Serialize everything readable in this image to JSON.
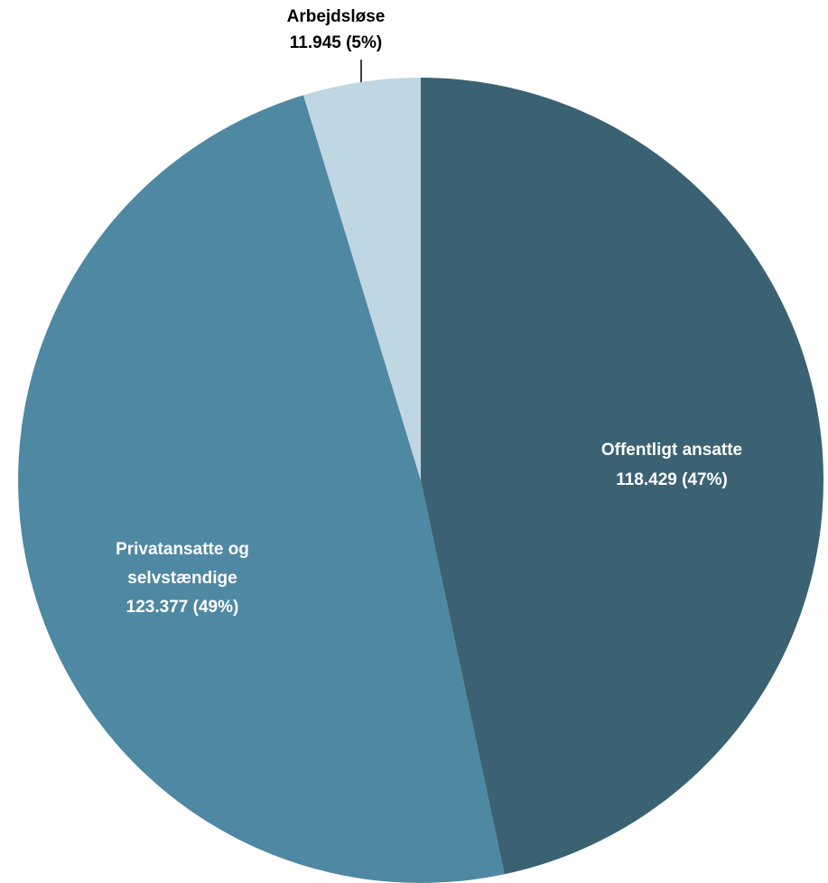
{
  "chart_data": {
    "type": "pie",
    "title": "",
    "slices": [
      {
        "label": "Offentligt ansatte",
        "value": 118429,
        "percent": 47,
        "display_value": "118.429 (47%)",
        "color": "#3a6273",
        "label_color": "#ffffff"
      },
      {
        "label": "Privatansatte og selvstændige",
        "label_lines": [
          "Privatansatte og",
          "selvstændige"
        ],
        "value": 123377,
        "percent": 49,
        "display_value": "123.377 (49%)",
        "color": "#4f88a2",
        "label_color": "#ffffff"
      },
      {
        "label": "Arbejdsløse",
        "value": 11945,
        "percent": 5,
        "display_value": "11.945 (5%)",
        "color": "#c0d6e2",
        "label_color": "#000000"
      }
    ],
    "start_angle": "12 o'clock",
    "direction": "clockwise",
    "legend": "none"
  }
}
